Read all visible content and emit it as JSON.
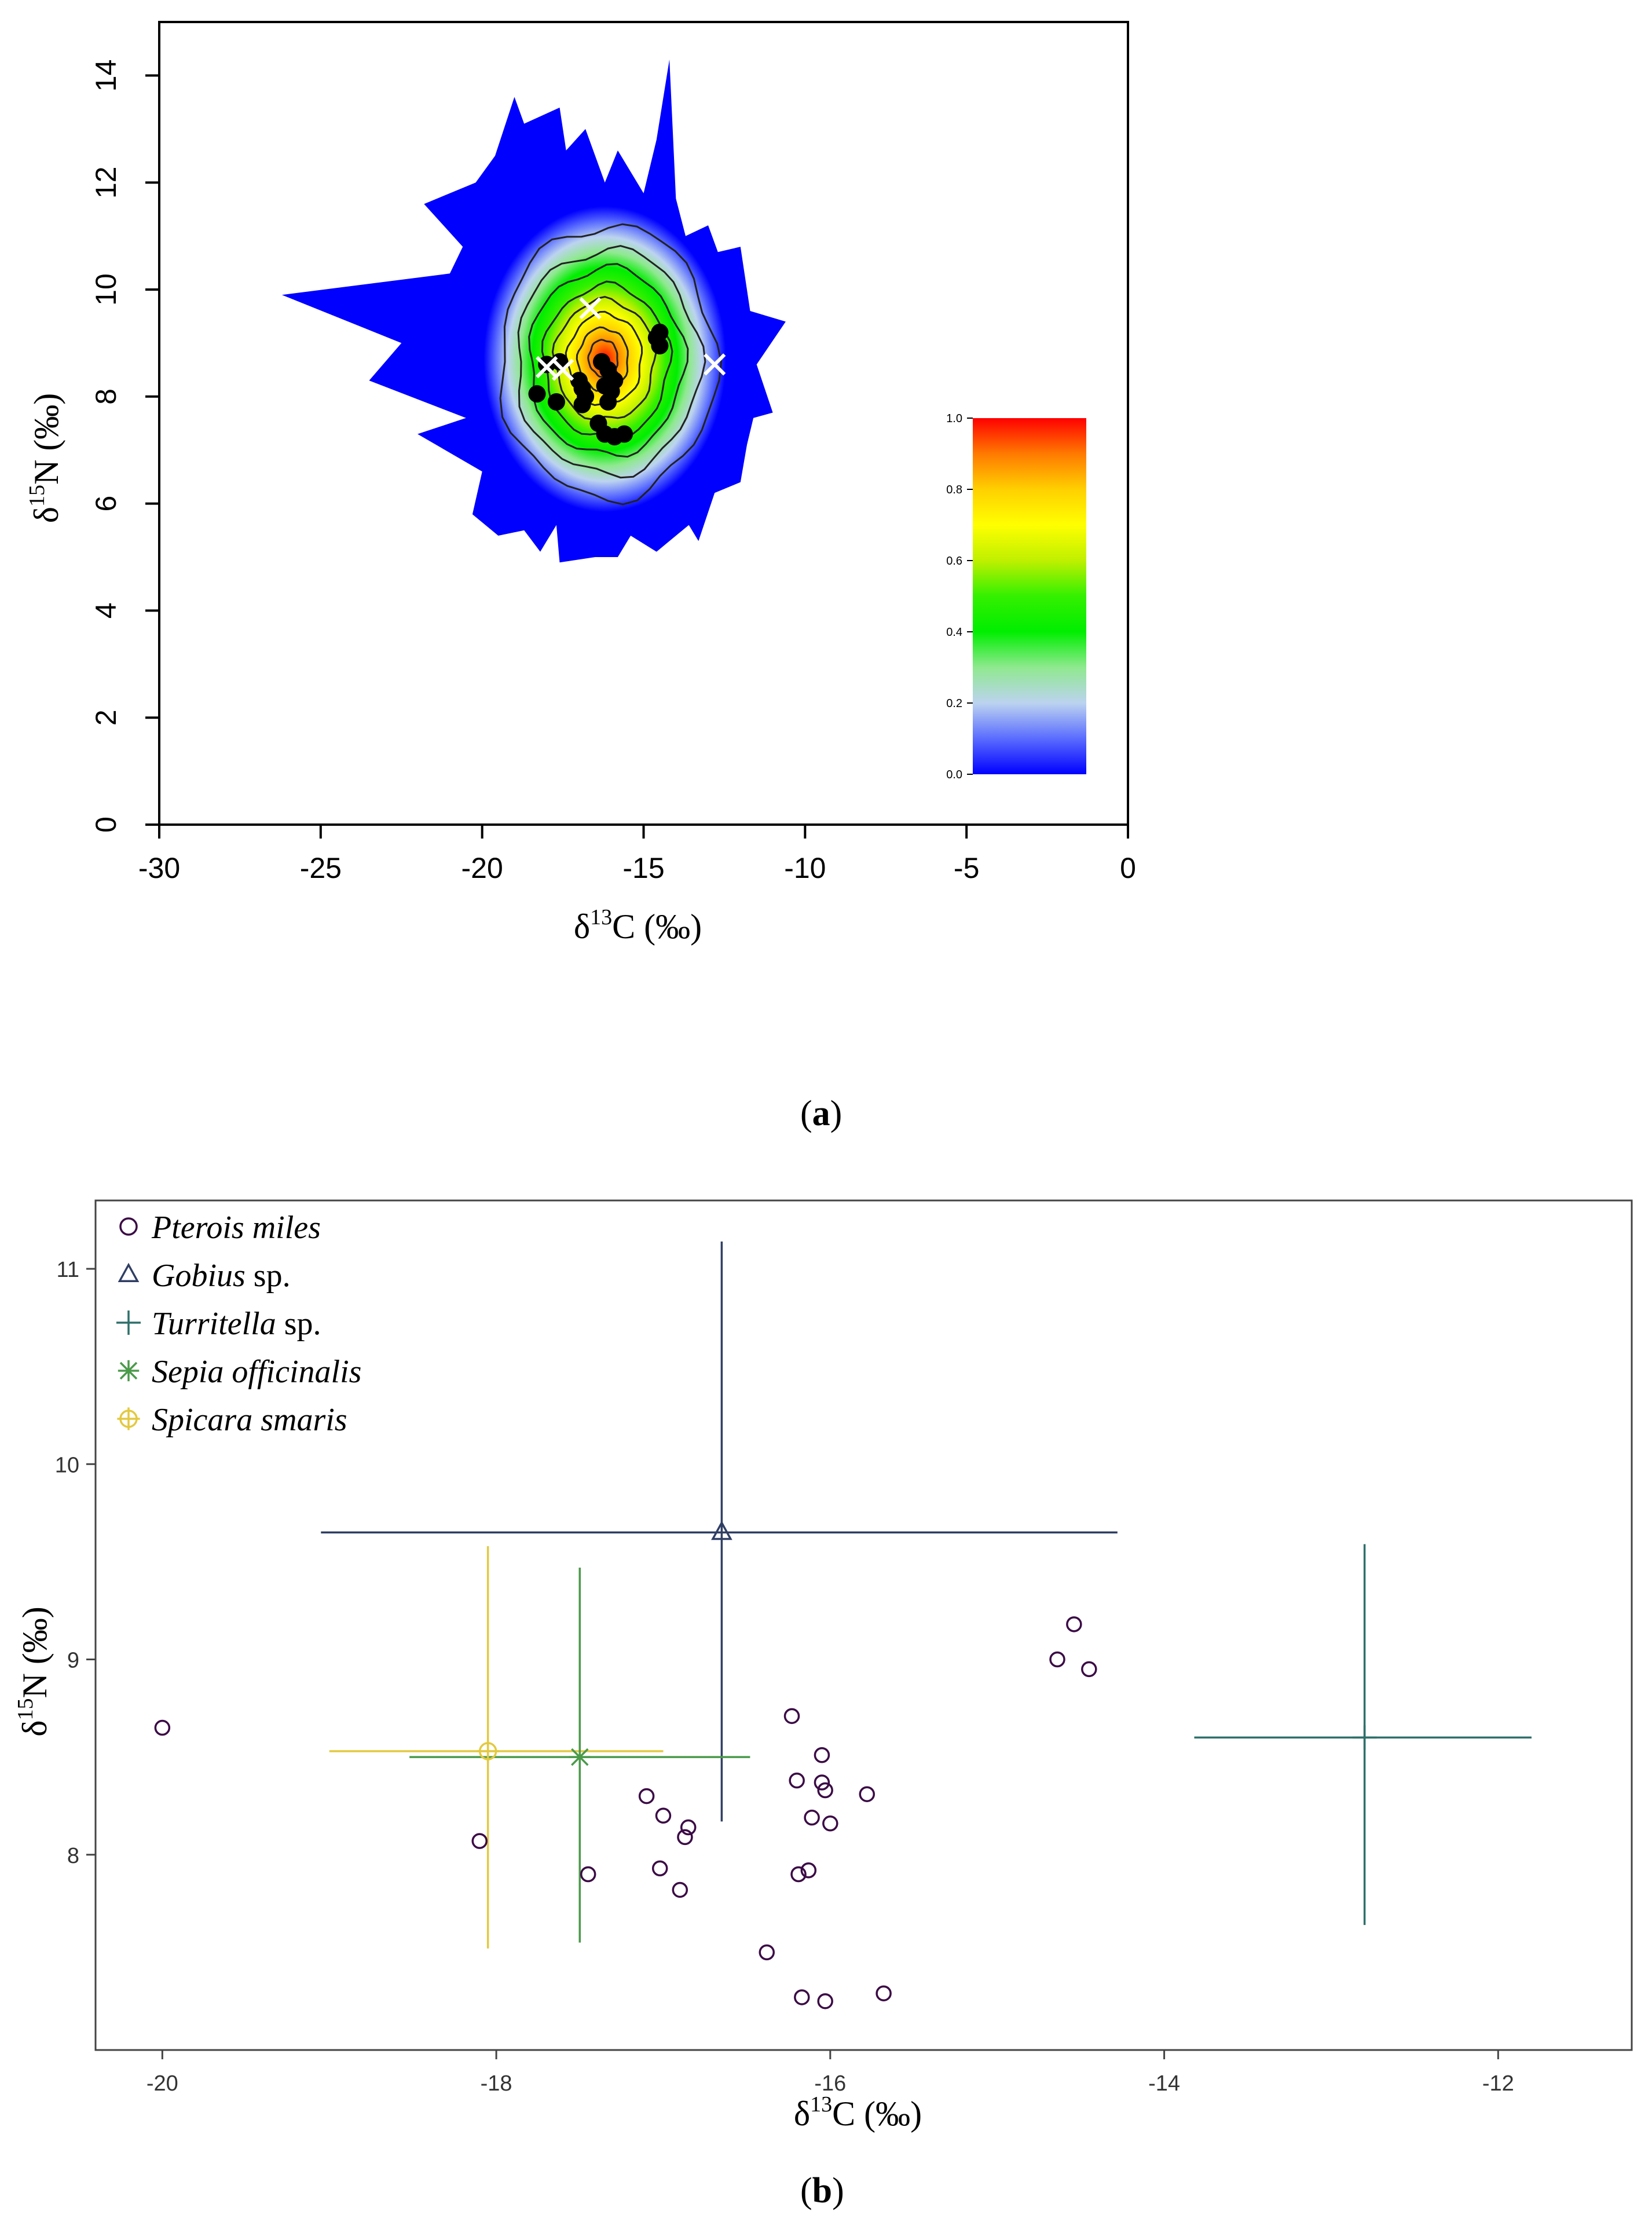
{
  "panels": [
    {
      "label_open": "(",
      "label_letter": "a",
      "label_close": ")"
    },
    {
      "label_open": "(",
      "label_letter": "b",
      "label_close": ")"
    }
  ],
  "colors": {
    "density_low": "#0000ff",
    "density_mid": "#00ee00",
    "density_high": "#ff0000",
    "pterois": "#3b0a45",
    "gobius": "#2f3e63",
    "turritella": "#2e6f6a",
    "sepia": "#4a9a4a",
    "spicara": "#e3c940"
  },
  "chart_data": [
    {
      "type": "heatmap",
      "xlabel": "δ13C (‰)",
      "xlabel_parts": {
        "delta": "δ",
        "sup": "13",
        "elem": "C (‰)"
      },
      "ylabel": "δ15N (‰)",
      "ylabel_parts": {
        "delta": "δ",
        "sup": "15",
        "elem": "N (‰)"
      },
      "xlim": [
        -30,
        0
      ],
      "ylim": [
        0,
        15
      ],
      "xticks": [
        -30,
        -25,
        -20,
        -15,
        -10,
        -5,
        0
      ],
      "xtick_labels": [
        "-30",
        "-25",
        "-20",
        "-15",
        "-10",
        "-5",
        "0"
      ],
      "yticks": [
        0,
        2,
        4,
        6,
        8,
        10,
        12,
        14
      ],
      "ytick_labels": [
        "0",
        "2",
        "4",
        "6",
        "8",
        "10",
        "12",
        "14"
      ],
      "colorbar": {
        "range": [
          0.0,
          1.0
        ],
        "ticks": [
          0.0,
          0.2,
          0.4,
          0.6,
          0.8,
          1.0
        ],
        "tick_labels": [
          "0.0",
          "0.2",
          "0.4",
          "0.6",
          "0.8",
          "1.0"
        ],
        "stops": [
          {
            "v": 0.0,
            "color": "#0000ff"
          },
          {
            "v": 0.1,
            "color": "#5a6cff"
          },
          {
            "v": 0.2,
            "color": "#bcd3f0"
          },
          {
            "v": 0.3,
            "color": "#8fe98f"
          },
          {
            "v": 0.4,
            "color": "#00ee00"
          },
          {
            "v": 0.5,
            "color": "#33f000"
          },
          {
            "v": 0.6,
            "color": "#bff000"
          },
          {
            "v": 0.7,
            "color": "#ffff00"
          },
          {
            "v": 0.8,
            "color": "#ffd000"
          },
          {
            "v": 0.9,
            "color": "#ff7a00"
          },
          {
            "v": 1.0,
            "color": "#ff0000"
          }
        ]
      },
      "density_peak": {
        "x": -16.2,
        "y": 8.7
      },
      "density_outline": [
        [
          -26.2,
          9.9
        ],
        [
          -22.5,
          9.0
        ],
        [
          -23.5,
          8.3
        ],
        [
          -20.5,
          7.6
        ],
        [
          -22.0,
          7.3
        ],
        [
          -20.0,
          6.6
        ],
        [
          -20.3,
          5.8
        ],
        [
          -19.5,
          5.4
        ],
        [
          -18.7,
          5.5
        ],
        [
          -18.2,
          5.1
        ],
        [
          -17.7,
          5.6
        ],
        [
          -17.6,
          4.9
        ],
        [
          -16.5,
          5.0
        ],
        [
          -15.8,
          5.0
        ],
        [
          -15.4,
          5.4
        ],
        [
          -14.6,
          5.1
        ],
        [
          -13.6,
          5.6
        ],
        [
          -13.3,
          5.3
        ],
        [
          -12.8,
          6.2
        ],
        [
          -12.0,
          6.4
        ],
        [
          -11.8,
          7.1
        ],
        [
          -11.6,
          7.6
        ],
        [
          -11.0,
          7.7
        ],
        [
          -11.5,
          8.6
        ],
        [
          -10.6,
          9.4
        ],
        [
          -11.7,
          9.6
        ],
        [
          -12.0,
          10.8
        ],
        [
          -12.7,
          10.7
        ],
        [
          -13.0,
          11.2
        ],
        [
          -13.7,
          11.0
        ],
        [
          -14.0,
          11.7
        ],
        [
          -14.2,
          14.3
        ],
        [
          -14.6,
          12.8
        ],
        [
          -15.0,
          11.8
        ],
        [
          -15.8,
          12.6
        ],
        [
          -16.2,
          12.0
        ],
        [
          -16.8,
          13.0
        ],
        [
          -17.4,
          12.6
        ],
        [
          -17.6,
          13.4
        ],
        [
          -18.7,
          13.1
        ],
        [
          -19.0,
          13.6
        ],
        [
          -19.6,
          12.5
        ],
        [
          -20.2,
          12.0
        ],
        [
          -21.8,
          11.6
        ],
        [
          -20.6,
          10.8
        ],
        [
          -21.0,
          10.3
        ]
      ],
      "contours": [
        {
          "level": 0.1,
          "cx": -16.1,
          "cy": 8.65,
          "rx": 3.35,
          "ry": 2.55
        },
        {
          "level": 0.2,
          "cx": -16.1,
          "cy": 8.65,
          "rx": 2.85,
          "ry": 2.1
        },
        {
          "level": 0.3,
          "cx": -16.15,
          "cy": 8.65,
          "rx": 2.4,
          "ry": 1.75
        },
        {
          "level": 0.4,
          "cx": -16.15,
          "cy": 8.65,
          "rx": 1.95,
          "ry": 1.42
        },
        {
          "level": 0.5,
          "cx": -16.2,
          "cy": 8.68,
          "rx": 1.55,
          "ry": 1.12
        },
        {
          "level": 0.6,
          "cx": -16.2,
          "cy": 8.7,
          "rx": 1.15,
          "ry": 0.85
        },
        {
          "level": 0.7,
          "cx": -16.25,
          "cy": 8.7,
          "rx": 0.78,
          "ry": 0.58
        },
        {
          "level": 0.8,
          "cx": -16.25,
          "cy": 8.72,
          "rx": 0.45,
          "ry": 0.34
        }
      ],
      "points": [
        {
          "x": -18.0,
          "y": 8.6
        },
        {
          "x": -17.6,
          "y": 8.65
        },
        {
          "x": -18.3,
          "y": 8.05
        },
        {
          "x": -17.7,
          "y": 7.9
        },
        {
          "x": -17.0,
          "y": 8.3
        },
        {
          "x": -16.9,
          "y": 8.15
        },
        {
          "x": -16.8,
          "y": 8.0
        },
        {
          "x": -16.9,
          "y": 7.85
        },
        {
          "x": -16.3,
          "y": 8.65
        },
        {
          "x": -16.1,
          "y": 8.5
        },
        {
          "x": -16.0,
          "y": 8.35
        },
        {
          "x": -15.9,
          "y": 8.3
        },
        {
          "x": -16.2,
          "y": 8.2
        },
        {
          "x": -16.0,
          "y": 8.1
        },
        {
          "x": -16.1,
          "y": 7.9
        },
        {
          "x": -16.4,
          "y": 7.5
        },
        {
          "x": -16.2,
          "y": 7.3
        },
        {
          "x": -15.9,
          "y": 7.25
        },
        {
          "x": -15.6,
          "y": 7.3
        },
        {
          "x": -14.6,
          "y": 9.1
        },
        {
          "x": -14.5,
          "y": 9.2
        },
        {
          "x": -14.5,
          "y": 8.95
        }
      ],
      "source_markers": [
        {
          "x": -16.65,
          "y": 9.65
        },
        {
          "x": -12.8,
          "y": 8.6
        },
        {
          "x": -17.5,
          "y": 8.5
        },
        {
          "x": -18.0,
          "y": 8.55
        }
      ]
    },
    {
      "type": "scatter",
      "xlabel": "δ13C (‰)",
      "xlabel_parts": {
        "delta": "δ",
        "sup": "13",
        "elem": "C (‰)"
      },
      "ylabel": "δ15N (‰)",
      "ylabel_parts": {
        "delta": "δ",
        "sup": "15",
        "elem": "N (‰)"
      },
      "xlim": [
        -20.4,
        -11.2
      ],
      "ylim": [
        7.0,
        11.35
      ],
      "xticks": [
        -20,
        -18,
        -16,
        -14,
        -12
      ],
      "xtick_labels": [
        "-20",
        "-18",
        "-16",
        "-14",
        "-12"
      ],
      "yticks": [
        8,
        9,
        10,
        11
      ],
      "ytick_labels": [
        "8",
        "9",
        "10",
        "11"
      ],
      "legend_position": "top-left",
      "series": [
        {
          "name": "Pterois miles",
          "name_italic": "Pterois miles",
          "name_rest": "",
          "marker": "circle",
          "color": "#3b0a45",
          "points": [
            {
              "x": -20.0,
              "y": 8.65
            },
            {
              "x": -18.1,
              "y": 8.07
            },
            {
              "x": -17.45,
              "y": 7.9
            },
            {
              "x": -17.1,
              "y": 8.3
            },
            {
              "x": -17.0,
              "y": 8.2
            },
            {
              "x": -17.02,
              "y": 7.93
            },
            {
              "x": -16.85,
              "y": 8.14
            },
            {
              "x": -16.87,
              "y": 8.09
            },
            {
              "x": -16.9,
              "y": 7.82
            },
            {
              "x": -16.38,
              "y": 7.5
            },
            {
              "x": -16.23,
              "y": 8.71
            },
            {
              "x": -16.2,
              "y": 8.38
            },
            {
              "x": -16.19,
              "y": 7.9
            },
            {
              "x": -16.13,
              "y": 7.92
            },
            {
              "x": -16.11,
              "y": 8.19
            },
            {
              "x": -16.17,
              "y": 7.27
            },
            {
              "x": -16.05,
              "y": 8.51
            },
            {
              "x": -16.05,
              "y": 8.37
            },
            {
              "x": -16.03,
              "y": 8.33
            },
            {
              "x": -16.0,
              "y": 8.16
            },
            {
              "x": -16.03,
              "y": 7.25
            },
            {
              "x": -15.78,
              "y": 8.31
            },
            {
              "x": -15.68,
              "y": 7.29
            },
            {
              "x": -14.64,
              "y": 9.0
            },
            {
              "x": -14.54,
              "y": 9.18
            },
            {
              "x": -14.45,
              "y": 8.95
            }
          ]
        },
        {
          "name": "Gobius sp.",
          "name_italic": "Gobius",
          "name_rest": " sp.",
          "marker": "triangle",
          "color": "#2f3e63",
          "mean": {
            "x": -16.65,
            "y": 9.65
          },
          "x_range": [
            -19.05,
            -14.28
          ],
          "y_range": [
            8.17,
            11.14
          ]
        },
        {
          "name": "Turritella sp.",
          "name_italic": "Turritella",
          "name_rest": " sp.",
          "marker": "plus",
          "color": "#2e6f6a",
          "mean": {
            "x": -12.8,
            "y": 8.6
          },
          "x_range": [
            -13.82,
            -11.8
          ],
          "y_range": [
            7.64,
            9.59
          ]
        },
        {
          "name": "Sepia officinalis",
          "name_italic": "Sepia officinalis",
          "name_rest": "",
          "marker": "asterisk",
          "color": "#4a9a4a",
          "mean": {
            "x": -17.5,
            "y": 8.5
          },
          "x_range": [
            -18.52,
            -16.48
          ],
          "y_range": [
            7.55,
            9.47
          ]
        },
        {
          "name": "Spicara smaris",
          "name_italic": "Spicara smaris",
          "name_rest": "",
          "marker": "circle-plus",
          "color": "#e3c940",
          "mean": {
            "x": -18.05,
            "y": 8.53
          },
          "x_range": [
            -19.0,
            -17.0
          ],
          "y_range": [
            7.52,
            9.58
          ]
        }
      ]
    }
  ]
}
